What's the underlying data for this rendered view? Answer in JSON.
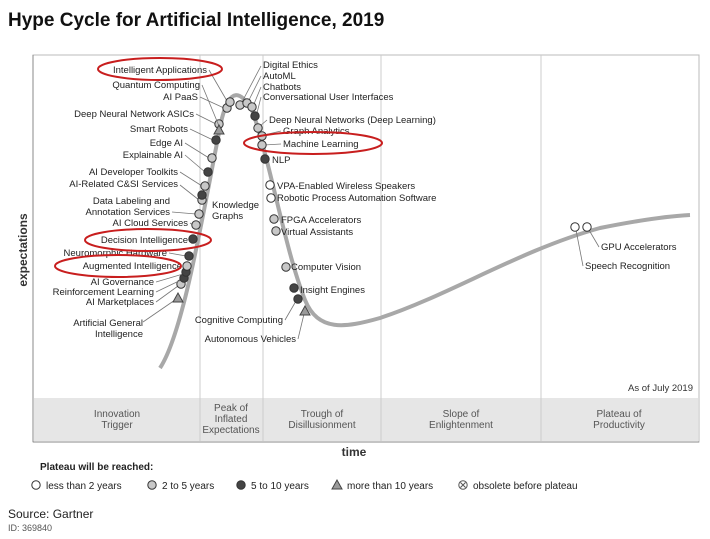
{
  "chart_data": {
    "type": "hype-cycle",
    "title": "Hype Cycle for Artificial Intelligence, 2019",
    "xlabel": "time",
    "ylabel": "expectations",
    "as_of": "As of July 2019",
    "phases": [
      [
        "Innovation",
        "Trigger"
      ],
      [
        "Peak of",
        "Inflated",
        "Expectations"
      ],
      [
        "Trough of",
        "Disillusionment"
      ],
      [
        "Slope of",
        "Enlightenment"
      ],
      [
        "Plateau of",
        "Productivity"
      ]
    ],
    "legend_title": "Plateau will be reached:",
    "legend": [
      {
        "key": "lt2",
        "label": "less than 2 years"
      },
      {
        "key": "2to5",
        "label": "2 to 5 years"
      },
      {
        "key": "5to10",
        "label": "5 to 10 years"
      },
      {
        "key": "gt10",
        "label": "more than 10 years"
      },
      {
        "key": "obsolete",
        "label": "obsolete before plateau"
      }
    ],
    "highlighted": [
      "Intelligent Applications",
      "Machine Learning",
      "Decision Intelligence",
      "Augmented Intelligence"
    ],
    "technologies": [
      {
        "name": "Artificial General Intelligence",
        "phase": "Innovation Trigger",
        "plateau": "gt10"
      },
      {
        "name": "AI Marketplaces",
        "phase": "Innovation Trigger",
        "plateau": "2to5"
      },
      {
        "name": "Reinforcement Learning",
        "phase": "Innovation Trigger",
        "plateau": "5to10"
      },
      {
        "name": "AI Governance",
        "phase": "Innovation Trigger",
        "plateau": "5to10"
      },
      {
        "name": "Augmented Intelligence",
        "phase": "Innovation Trigger",
        "plateau": "2to5"
      },
      {
        "name": "Neuromorphic Hardware",
        "phase": "Innovation Trigger",
        "plateau": "5to10"
      },
      {
        "name": "Decision Intelligence",
        "phase": "Innovation Trigger",
        "plateau": "5to10"
      },
      {
        "name": "AI Cloud Services",
        "phase": "Innovation Trigger",
        "plateau": "2to5"
      },
      {
        "name": "Annotation Services",
        "phase": "Innovation Trigger",
        "plateau": "2to5"
      },
      {
        "name": "Data Labeling and",
        "phase": "Innovation Trigger",
        "plateau": "2to5"
      },
      {
        "name": "AI-Related C&SI Services",
        "phase": "Innovation Trigger",
        "plateau": "2to5"
      },
      {
        "name": "AI Developer Toolkits",
        "phase": "Innovation Trigger",
        "plateau": "2to5"
      },
      {
        "name": "Explainable AI",
        "phase": "Innovation Trigger",
        "plateau": "5to10"
      },
      {
        "name": "Edge AI",
        "phase": "Innovation Trigger",
        "plateau": "2to5"
      },
      {
        "name": "Smart Robots",
        "phase": "Innovation Trigger",
        "plateau": "5to10"
      },
      {
        "name": "Deep Neural Network ASICs",
        "phase": "Peak of Inflated Expectations",
        "plateau": "2to5"
      },
      {
        "name": "AI PaaS",
        "phase": "Peak of Inflated Expectations",
        "plateau": "2to5"
      },
      {
        "name": "Quantum Computing",
        "phase": "Peak of Inflated Expectations",
        "plateau": "gt10"
      },
      {
        "name": "Intelligent Applications",
        "phase": "Peak of Inflated Expectations",
        "plateau": "2to5"
      },
      {
        "name": "Digital Ethics",
        "phase": "Peak of Inflated Expectations",
        "plateau": "2to5"
      },
      {
        "name": "AutoML",
        "phase": "Peak of Inflated Expectations",
        "plateau": "2to5"
      },
      {
        "name": "Chatbots",
        "phase": "Peak of Inflated Expectations",
        "plateau": "2to5"
      },
      {
        "name": "Conversational User Interfaces",
        "phase": "Peak of Inflated Expectations",
        "plateau": "5to10"
      },
      {
        "name": "Deep Neural Networks (Deep Learning)",
        "phase": "Peak of Inflated Expectations",
        "plateau": "2to5"
      },
      {
        "name": "Graph Analytics",
        "phase": "Peak of Inflated Expectations",
        "plateau": "2to5"
      },
      {
        "name": "Machine Learning",
        "phase": "Peak of Inflated Expectations",
        "plateau": "2to5"
      },
      {
        "name": "NLP",
        "phase": "Trough of Disillusionment",
        "plateau": "5to10"
      },
      {
        "name": "Knowledge Graphs",
        "phase": "Innovation Trigger",
        "plateau": "5to10"
      },
      {
        "name": "VPA-Enabled Wireless Speakers",
        "phase": "Trough of Disillusionment",
        "plateau": "lt2"
      },
      {
        "name": "Robotic Process Automation Software",
        "phase": "Trough of Disillusionment",
        "plateau": "lt2"
      },
      {
        "name": "FPGA Accelerators",
        "phase": "Trough of Disillusionment",
        "plateau": "2to5"
      },
      {
        "name": "Virtual Assistants",
        "phase": "Trough of Disillusionment",
        "plateau": "2to5"
      },
      {
        "name": "Computer Vision",
        "phase": "Trough of Disillusionment",
        "plateau": "2to5"
      },
      {
        "name": "Insight Engines",
        "phase": "Trough of Disillusionment",
        "plateau": "5to10"
      },
      {
        "name": "Cognitive Computing",
        "phase": "Trough of Disillusionment",
        "plateau": "5to10"
      },
      {
        "name": "Autonomous Vehicles",
        "phase": "Trough of Disillusionment",
        "plateau": "gt10"
      },
      {
        "name": "GPU Accelerators",
        "phase": "Plateau of Productivity",
        "plateau": "lt2"
      },
      {
        "name": "Speech Recognition",
        "phase": "Plateau of Productivity",
        "plateau": "lt2"
      }
    ]
  },
  "footer": {
    "source": "Source: Gartner",
    "id": "ID: 369840"
  },
  "colors": {
    "lt2": "#ffffff",
    "2to5": "#c8c8c8",
    "5to10": "#444444",
    "gt10": "#9a9a9a",
    "curve": "#a0a0a0",
    "highlight": "#c81e1e",
    "band": "#e6e6e6"
  }
}
